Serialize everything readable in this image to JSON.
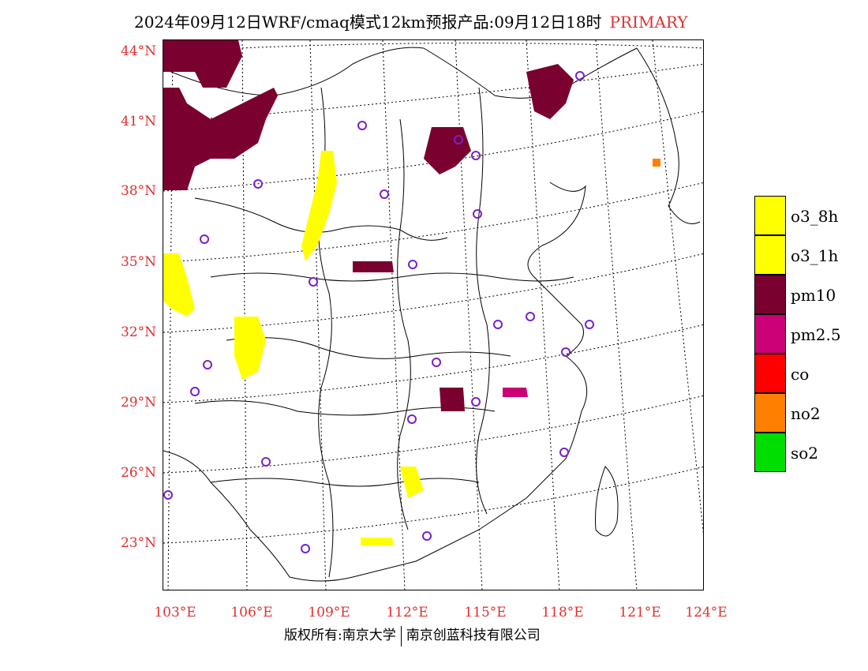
{
  "title": {
    "main": "2024年09月12日WRF/cmaq模式12km预报产品:09月12日18时",
    "accent": "PRIMARY"
  },
  "lat_labels": [
    "44°N",
    "41°N",
    "38°N",
    "35°N",
    "32°N",
    "29°N",
    "26°N",
    "23°N"
  ],
  "lon_labels": [
    "103°E",
    "106°E",
    "109°E",
    "112°E",
    "115°E",
    "118°E",
    "121°E",
    "124°E"
  ],
  "legend": [
    {
      "label": "o3_8h",
      "color": "#ffff00"
    },
    {
      "label": "o3_1h",
      "color": "#ffff00"
    },
    {
      "label": "pm10",
      "color": "#7a0030"
    },
    {
      "label": "pm2.5",
      "color": "#cc0077"
    },
    {
      "label": "co",
      "color": "#ff0000"
    },
    {
      "label": "no2",
      "color": "#ff8000"
    },
    {
      "label": "so2",
      "color": "#00dd00"
    }
  ],
  "footer": {
    "left": "版权所有:南京大学",
    "right": "南京创蓝科技有限公司"
  }
}
